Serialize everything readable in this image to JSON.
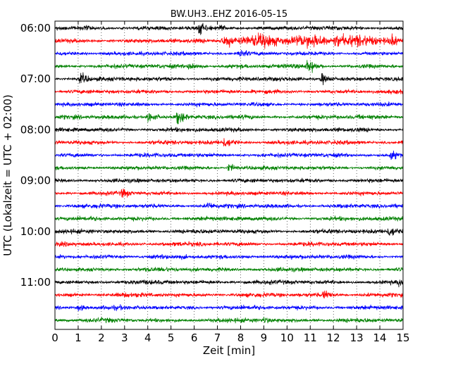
{
  "chart_data": {
    "type": "line",
    "title": "BW.UH3..EHZ 2016-05-15",
    "xlabel": "Zeit  [min]",
    "ylabel": "UTC (Lokalzeit = UTC + 02:00)",
    "xlim": [
      0,
      15
    ],
    "x_ticks": [
      "0",
      "1",
      "2",
      "3",
      "4",
      "5",
      "6",
      "7",
      "8",
      "9",
      "10",
      "11",
      "12",
      "13",
      "14",
      "15"
    ],
    "y_ticks": [
      {
        "label": "06:00",
        "row": 0
      },
      {
        "label": "07:00",
        "row": 4
      },
      {
        "label": "08:00",
        "row": 8
      },
      {
        "label": "09:00",
        "row": 12
      },
      {
        "label": "10:00",
        "row": 16
      },
      {
        "label": "11:00",
        "row": 20
      }
    ],
    "grid": {
      "x": true,
      "y": false,
      "style": "dotted"
    },
    "row_minutes": 15,
    "trace_colors": [
      "#000000",
      "#ff0000",
      "#0000ff",
      "#008000"
    ],
    "rows": [
      {
        "start": "06:00",
        "color": "#000000",
        "amplitude": 0.3,
        "events": [
          {
            "t": 6.2,
            "amp": 0.9
          },
          {
            "t": 7.1,
            "amp": 0.5
          }
        ]
      },
      {
        "start": "06:15",
        "color": "#ff0000",
        "amplitude": 0.3,
        "events": [
          {
            "t": 9.8,
            "amp": 0.9,
            "width": 4.5
          },
          {
            "t": 13.5,
            "amp": 0.8,
            "width": 2.0
          }
        ]
      },
      {
        "start": "06:30",
        "color": "#0000ff",
        "amplitude": 0.28,
        "events": [
          {
            "t": 8.0,
            "amp": 0.7
          }
        ]
      },
      {
        "start": "06:45",
        "color": "#008000",
        "amplitude": 0.3,
        "events": [
          {
            "t": 5.8,
            "amp": 0.7
          },
          {
            "t": 10.9,
            "amp": 1.0
          }
        ]
      },
      {
        "start": "07:00",
        "color": "#000000",
        "amplitude": 0.3,
        "events": [
          {
            "t": 1.1,
            "amp": 0.8
          },
          {
            "t": 11.5,
            "amp": 0.7
          }
        ]
      },
      {
        "start": "07:15",
        "color": "#ff0000",
        "amplitude": 0.28,
        "events": []
      },
      {
        "start": "07:30",
        "color": "#0000ff",
        "amplitude": 0.28,
        "events": []
      },
      {
        "start": "07:45",
        "color": "#008000",
        "amplitude": 0.3,
        "events": [
          {
            "t": 4.0,
            "amp": 0.8
          },
          {
            "t": 5.3,
            "amp": 1.0
          }
        ]
      },
      {
        "start": "08:00",
        "color": "#000000",
        "amplitude": 0.3,
        "events": []
      },
      {
        "start": "08:15",
        "color": "#ff0000",
        "amplitude": 0.3,
        "events": [
          {
            "t": 7.3,
            "amp": 0.8
          }
        ]
      },
      {
        "start": "08:30",
        "color": "#0000ff",
        "amplitude": 0.3,
        "events": [
          {
            "t": 14.5,
            "amp": 0.7
          }
        ]
      },
      {
        "start": "08:45",
        "color": "#008000",
        "amplitude": 0.28,
        "events": [
          {
            "t": 7.5,
            "amp": 0.6
          }
        ]
      },
      {
        "start": "09:00",
        "color": "#000000",
        "amplitude": 0.28,
        "events": []
      },
      {
        "start": "09:15",
        "color": "#ff0000",
        "amplitude": 0.28,
        "events": [
          {
            "t": 2.9,
            "amp": 0.7
          }
        ]
      },
      {
        "start": "09:30",
        "color": "#0000ff",
        "amplitude": 0.3,
        "events": [
          {
            "t": 6.6,
            "amp": 0.6
          }
        ]
      },
      {
        "start": "09:45",
        "color": "#008000",
        "amplitude": 0.3,
        "events": []
      },
      {
        "start": "10:00",
        "color": "#000000",
        "amplitude": 0.3,
        "events": [
          {
            "t": 14.4,
            "amp": 0.8
          }
        ]
      },
      {
        "start": "10:15",
        "color": "#ff0000",
        "amplitude": 0.3,
        "events": []
      },
      {
        "start": "10:30",
        "color": "#0000ff",
        "amplitude": 0.3,
        "events": []
      },
      {
        "start": "10:45",
        "color": "#008000",
        "amplitude": 0.3,
        "events": []
      },
      {
        "start": "11:00",
        "color": "#000000",
        "amplitude": 0.3,
        "events": [
          {
            "t": 14.8,
            "amp": 0.6
          }
        ]
      },
      {
        "start": "11:15",
        "color": "#ff0000",
        "amplitude": 0.3,
        "events": [
          {
            "t": 11.6,
            "amp": 0.7
          }
        ]
      },
      {
        "start": "11:30",
        "color": "#0000ff",
        "amplitude": 0.3,
        "events": [
          {
            "t": 1.0,
            "amp": 0.5
          }
        ]
      },
      {
        "start": "11:45",
        "color": "#008000",
        "amplitude": 0.3,
        "events": [
          {
            "t": 9.0,
            "amp": 0.5
          }
        ]
      }
    ]
  }
}
